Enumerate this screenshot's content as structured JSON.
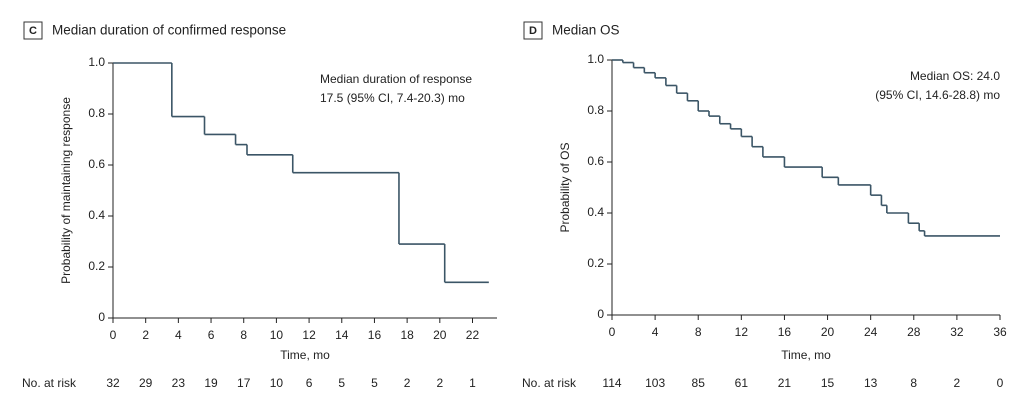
{
  "chart_data": [
    {
      "type": "step",
      "panel": "C",
      "title": "Median duration of confirmed response",
      "annotation": [
        "Median duration of response",
        "17.5 (95% CI, 7.4-20.3) mo"
      ],
      "xlabel": "Time, mo",
      "ylabel": "Probability of maintaining response",
      "xlim": [
        0,
        23.5
      ],
      "xticks": [
        0,
        2,
        4,
        6,
        8,
        10,
        12,
        14,
        16,
        18,
        20,
        22
      ],
      "ylim": [
        0,
        1
      ],
      "yticks": [
        0,
        0.2,
        0.4,
        0.6,
        0.8,
        {
          "value": 1,
          "label": "1.0"
        }
      ],
      "series": [
        {
          "color": "#3b5566",
          "x": [
            0,
            3.6,
            5.6,
            7.5,
            8.2,
            11,
            17.5,
            20.3,
            23
          ],
          "values": [
            1,
            0.79,
            0.72,
            0.68,
            0.64,
            0.57,
            0.29,
            0.14,
            0.14
          ]
        }
      ],
      "at_risk_label": "No. at risk",
      "at_risk": [
        32,
        29,
        23,
        19,
        17,
        10,
        6,
        5,
        5,
        2,
        2,
        1
      ]
    },
    {
      "type": "step",
      "panel": "D",
      "title": "Median OS",
      "annotation": [
        "Median OS: 24.0",
        "(95% CI, 14.6-28.8) mo"
      ],
      "xlabel": "Time, mo",
      "ylabel": "Probability of OS",
      "xlim": [
        0,
        36
      ],
      "xticks": [
        0,
        4,
        8,
        12,
        16,
        20,
        24,
        28,
        32,
        36
      ],
      "ylim": [
        0,
        1
      ],
      "yticks": [
        0,
        0.2,
        0.4,
        0.6,
        0.8,
        {
          "value": 1,
          "label": "1.0"
        }
      ],
      "series": [
        {
          "color": "#3b5566",
          "x": [
            0,
            1,
            2,
            3,
            4,
            5,
            6,
            7,
            8,
            9,
            10,
            11,
            12,
            13,
            14,
            16,
            19.5,
            21,
            24,
            25,
            25.5,
            27.5,
            28.5,
            29,
            36
          ],
          "values": [
            1,
            0.99,
            0.97,
            0.95,
            0.93,
            0.9,
            0.87,
            0.84,
            0.8,
            0.78,
            0.75,
            0.73,
            0.7,
            0.66,
            0.62,
            0.58,
            0.54,
            0.51,
            0.47,
            0.43,
            0.4,
            0.36,
            0.33,
            0.31,
            0.31
          ]
        }
      ],
      "at_risk_label": "No. at risk",
      "at_risk": [
        114,
        103,
        85,
        61,
        21,
        15,
        13,
        8,
        2,
        0
      ]
    }
  ]
}
